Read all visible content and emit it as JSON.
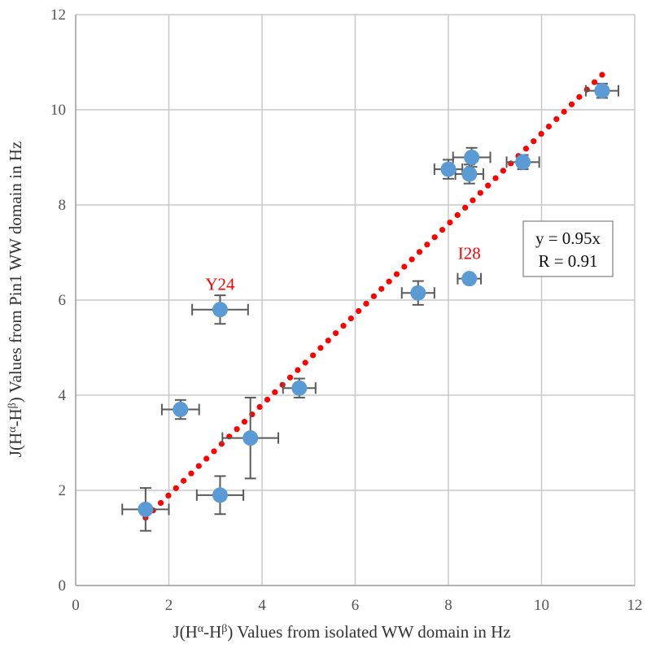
{
  "chart_data": {
    "type": "scatter",
    "xlabel": "J(Hα-Hβ) Values from isolated WW domain in Hz",
    "ylabel": "J(Hα-Hβ) Values from Pin1 WW domain in Hz",
    "xlabel_parts": [
      "J(H",
      "α",
      "-H",
      "β",
      ") Values from isolated WW domain in Hz"
    ],
    "ylabel_parts": [
      "J(H",
      "α",
      "-H",
      "β",
      ") Values from Pin1 WW domain in Hz"
    ],
    "xlim": [
      0,
      12
    ],
    "ylim": [
      0,
      12
    ],
    "x_ticks": [
      0,
      2,
      4,
      6,
      8,
      10,
      12
    ],
    "y_ticks": [
      0,
      2,
      4,
      6,
      8,
      10,
      12
    ],
    "grid": true,
    "marker_color": "#5b9bd5",
    "trendline_color": "#ff0000",
    "points": [
      {
        "x": 1.5,
        "y": 1.6,
        "xerr": 0.5,
        "yerr": 0.45,
        "label": ""
      },
      {
        "x": 2.25,
        "y": 3.7,
        "xerr": 0.4,
        "yerr": 0.2,
        "label": ""
      },
      {
        "x": 3.1,
        "y": 1.9,
        "xerr": 0.5,
        "yerr": 0.4,
        "label": ""
      },
      {
        "x": 3.75,
        "y": 3.1,
        "xerr": 0.6,
        "yerr": 0.85,
        "label": ""
      },
      {
        "x": 3.1,
        "y": 5.8,
        "xerr": 0.6,
        "yerr": 0.3,
        "label": "Y24"
      },
      {
        "x": 4.8,
        "y": 4.15,
        "xerr": 0.35,
        "yerr": 0.2,
        "label": ""
      },
      {
        "x": 7.35,
        "y": 6.15,
        "xerr": 0.35,
        "yerr": 0.25,
        "label": ""
      },
      {
        "x": 8.45,
        "y": 6.45,
        "xerr": 0.25,
        "yerr": 0.0,
        "label": "I28"
      },
      {
        "x": 8.0,
        "y": 8.75,
        "xerr": 0.3,
        "yerr": 0.2,
        "label": ""
      },
      {
        "x": 8.45,
        "y": 8.65,
        "xerr": 0.3,
        "yerr": 0.2,
        "label": ""
      },
      {
        "x": 8.5,
        "y": 9.0,
        "xerr": 0.4,
        "yerr": 0.2,
        "label": ""
      },
      {
        "x": 9.6,
        "y": 8.9,
        "xerr": 0.35,
        "yerr": 0.15,
        "label": ""
      },
      {
        "x": 11.3,
        "y": 10.4,
        "xerr": 0.35,
        "yerr": 0.15,
        "label": ""
      }
    ],
    "trendline": {
      "slope": 0.95,
      "x_range": [
        1.5,
        11.3
      ]
    },
    "equation_lines": [
      "y = 0.95x",
      "R = 0.91"
    ]
  }
}
